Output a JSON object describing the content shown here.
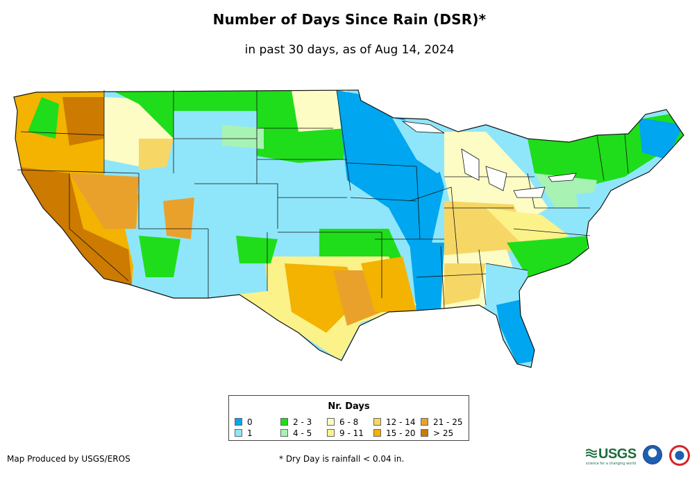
{
  "map": {
    "title": "Number of Days Since Rain (DSR)*",
    "subtitle": "in past 30 days, as of Aug 14, 2024"
  },
  "legend": {
    "title": "Nr. Days",
    "items": [
      {
        "label": "0",
        "color": "#00a6ef"
      },
      {
        "label": "1",
        "color": "#8fe6fa"
      },
      {
        "label": "2 - 3",
        "color": "#1fdd1a"
      },
      {
        "label": "4 - 5",
        "color": "#a8f2b4"
      },
      {
        "label": "6 - 8",
        "color": "#fcfcc4"
      },
      {
        "label": "9 - 11",
        "color": "#fbf28a"
      },
      {
        "label": "12 - 14",
        "color": "#f6d765"
      },
      {
        "label": "15 - 20",
        "color": "#f3b300"
      },
      {
        "label": "21 - 25",
        "color": "#eaa12c"
      },
      {
        "label": "> 25",
        "color": "#cc7a00"
      }
    ]
  },
  "footer": {
    "credit": "Map Produced by USGS/EROS",
    "note": "* Dry Day is rainfall < 0.04 in."
  },
  "logos": {
    "usgs": "USGS",
    "usgs_tagline": "science for a changing world"
  }
}
